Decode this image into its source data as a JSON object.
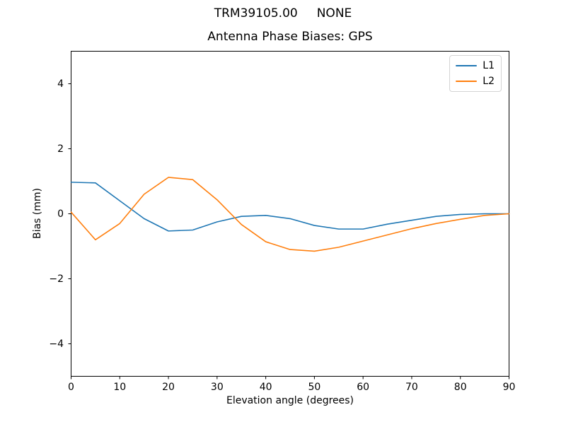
{
  "figure": {
    "suptitle": "TRM39105.00     NONE"
  },
  "chart_data": {
    "type": "line",
    "title": "Antenna Phase Biases: GPS",
    "xlabel": "Elevation angle (degrees)",
    "ylabel": "Bias (mm)",
    "xlim": [
      0,
      90
    ],
    "ylim": [
      -5,
      5
    ],
    "xticks": [
      0,
      10,
      20,
      30,
      40,
      50,
      60,
      70,
      80,
      90
    ],
    "xtick_labels": [
      "0",
      "10",
      "20",
      "30",
      "40",
      "50",
      "60",
      "70",
      "80",
      "90"
    ],
    "yticks": [
      -4,
      -2,
      0,
      2,
      4
    ],
    "ytick_labels": [
      "−4",
      "−2",
      "0",
      "2",
      "4"
    ],
    "grid": false,
    "legend_position": "upper right",
    "x": [
      0,
      5,
      10,
      15,
      20,
      25,
      30,
      35,
      40,
      45,
      50,
      55,
      60,
      65,
      70,
      75,
      80,
      85,
      90
    ],
    "series": [
      {
        "name": "L1",
        "color": "#1f77b4",
        "values": [
          0.97,
          0.95,
          0.4,
          -0.15,
          -0.53,
          -0.5,
          -0.25,
          -0.08,
          -0.05,
          -0.15,
          -0.36,
          -0.47,
          -0.47,
          -0.32,
          -0.2,
          -0.08,
          -0.02,
          0.0,
          0.0
        ]
      },
      {
        "name": "L2",
        "color": "#ff7f0e",
        "values": [
          0.05,
          -0.8,
          -0.3,
          0.6,
          1.12,
          1.05,
          0.43,
          -0.33,
          -0.86,
          -1.1,
          -1.15,
          -1.03,
          -0.84,
          -0.65,
          -0.46,
          -0.3,
          -0.17,
          -0.05,
          0.0
        ]
      }
    ]
  }
}
